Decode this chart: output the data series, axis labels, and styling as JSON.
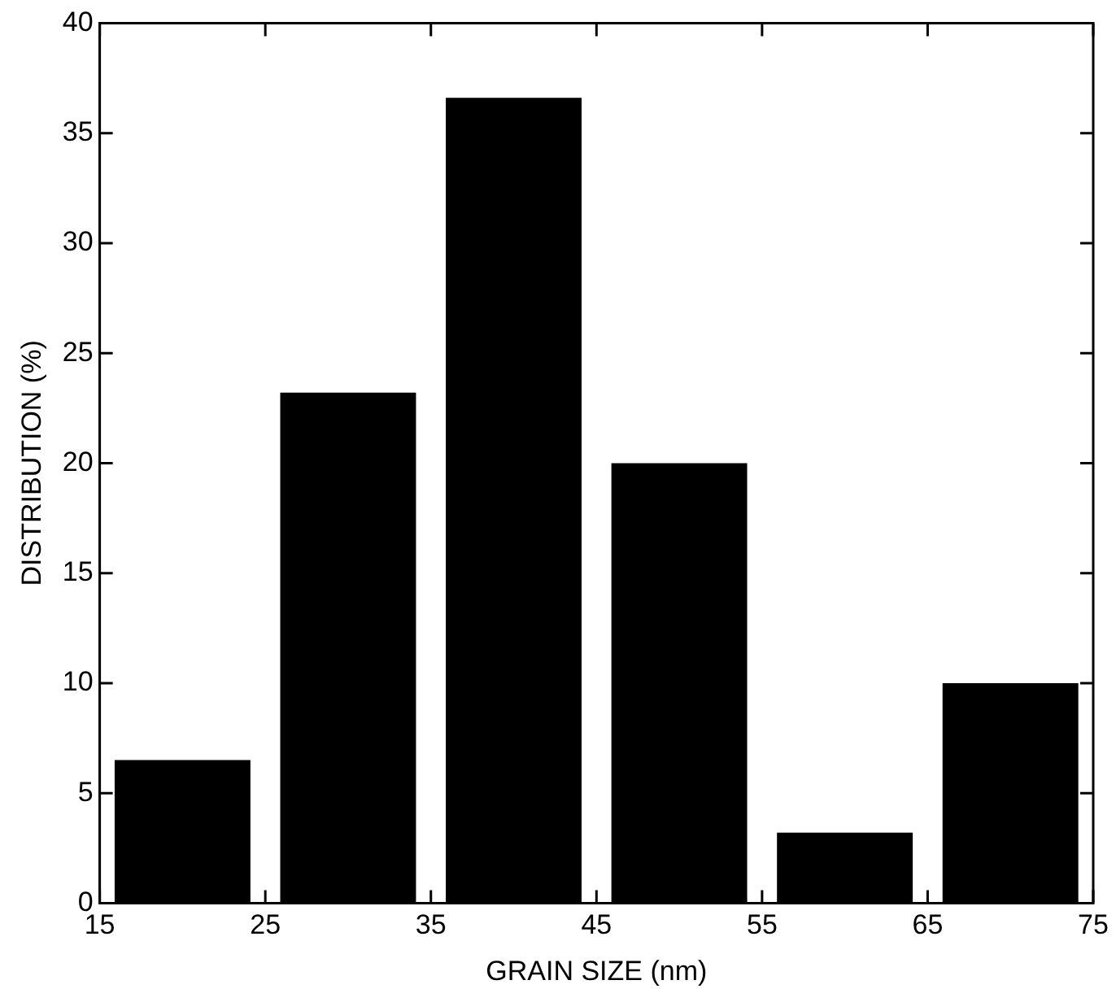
{
  "chart_data": {
    "type": "histogram",
    "xlabel": "GRAIN SIZE (nm)",
    "ylabel": "DISTRIBUTION (%)",
    "bins": [
      15,
      25,
      35,
      45,
      55,
      65,
      75
    ],
    "values": [
      6.5,
      23.2,
      36.6,
      20.0,
      3.2,
      10.0
    ],
    "color": "#000000",
    "xlim": [
      15,
      75
    ],
    "xticks": [
      15,
      25,
      35,
      45,
      55,
      65,
      75
    ],
    "ylim": [
      0,
      40
    ],
    "yticks": [
      0,
      5,
      10,
      15,
      20,
      25,
      30,
      35,
      40
    ],
    "grid": false,
    "legend": false
  }
}
